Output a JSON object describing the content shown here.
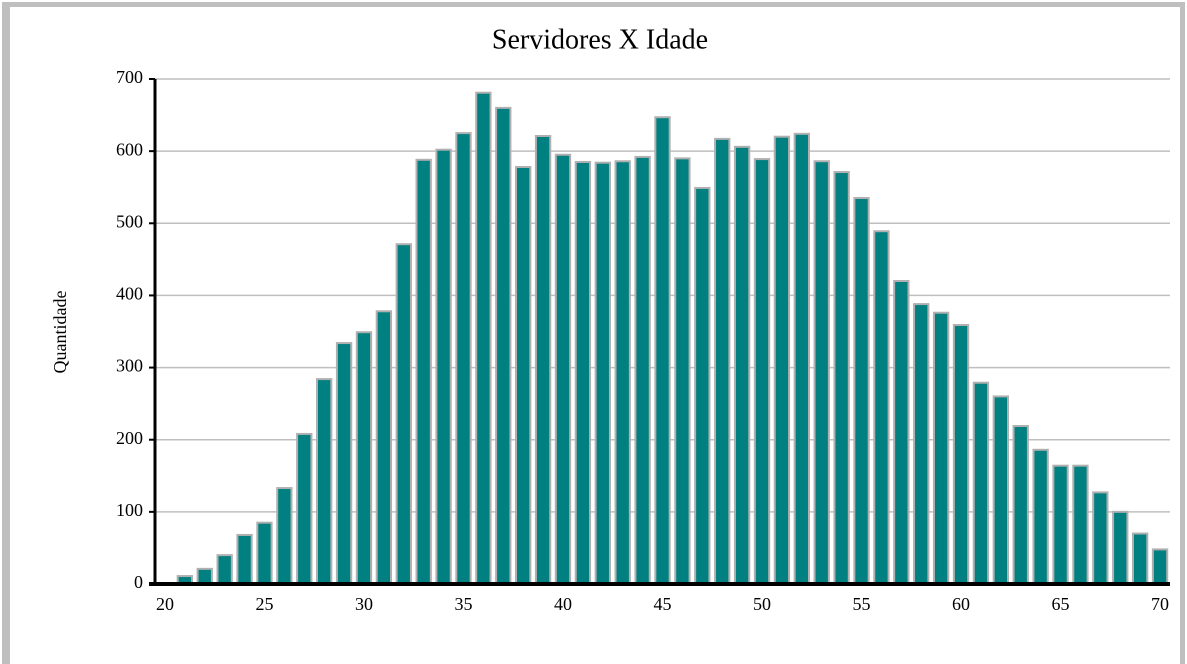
{
  "chart_data": {
    "type": "bar",
    "title": "Servidores X Idade",
    "y_label": "Quantidade",
    "categories": [
      "20",
      null,
      null,
      null,
      null,
      "25",
      null,
      null,
      null,
      null,
      "30",
      null,
      null,
      null,
      null,
      "35",
      null,
      null,
      null,
      null,
      "40",
      null,
      null,
      null,
      null,
      "45",
      null,
      null,
      null,
      null,
      "50",
      null,
      null,
      null,
      null,
      "55",
      null,
      null,
      null,
      null,
      "60",
      null,
      null,
      null,
      null,
      "65",
      null,
      null,
      null,
      null,
      "70"
    ],
    "values": [
      0,
      11,
      21,
      40,
      68,
      85,
      133,
      208,
      284,
      334,
      349,
      378,
      471,
      588,
      602,
      625,
      681,
      660,
      578,
      621,
      595,
      585,
      584,
      586,
      592,
      647,
      590,
      549,
      617,
      606,
      589,
      620,
      624,
      586,
      571,
      535,
      489,
      420,
      388,
      376,
      359,
      279,
      260,
      219,
      186,
      164,
      164,
      127,
      100,
      70,
      48
    ],
    "color": "#008080",
    "ylim": [
      0,
      700
    ],
    "yticks": [
      0,
      100,
      200,
      300,
      400,
      500,
      600,
      700
    ],
    "grid": true
  }
}
